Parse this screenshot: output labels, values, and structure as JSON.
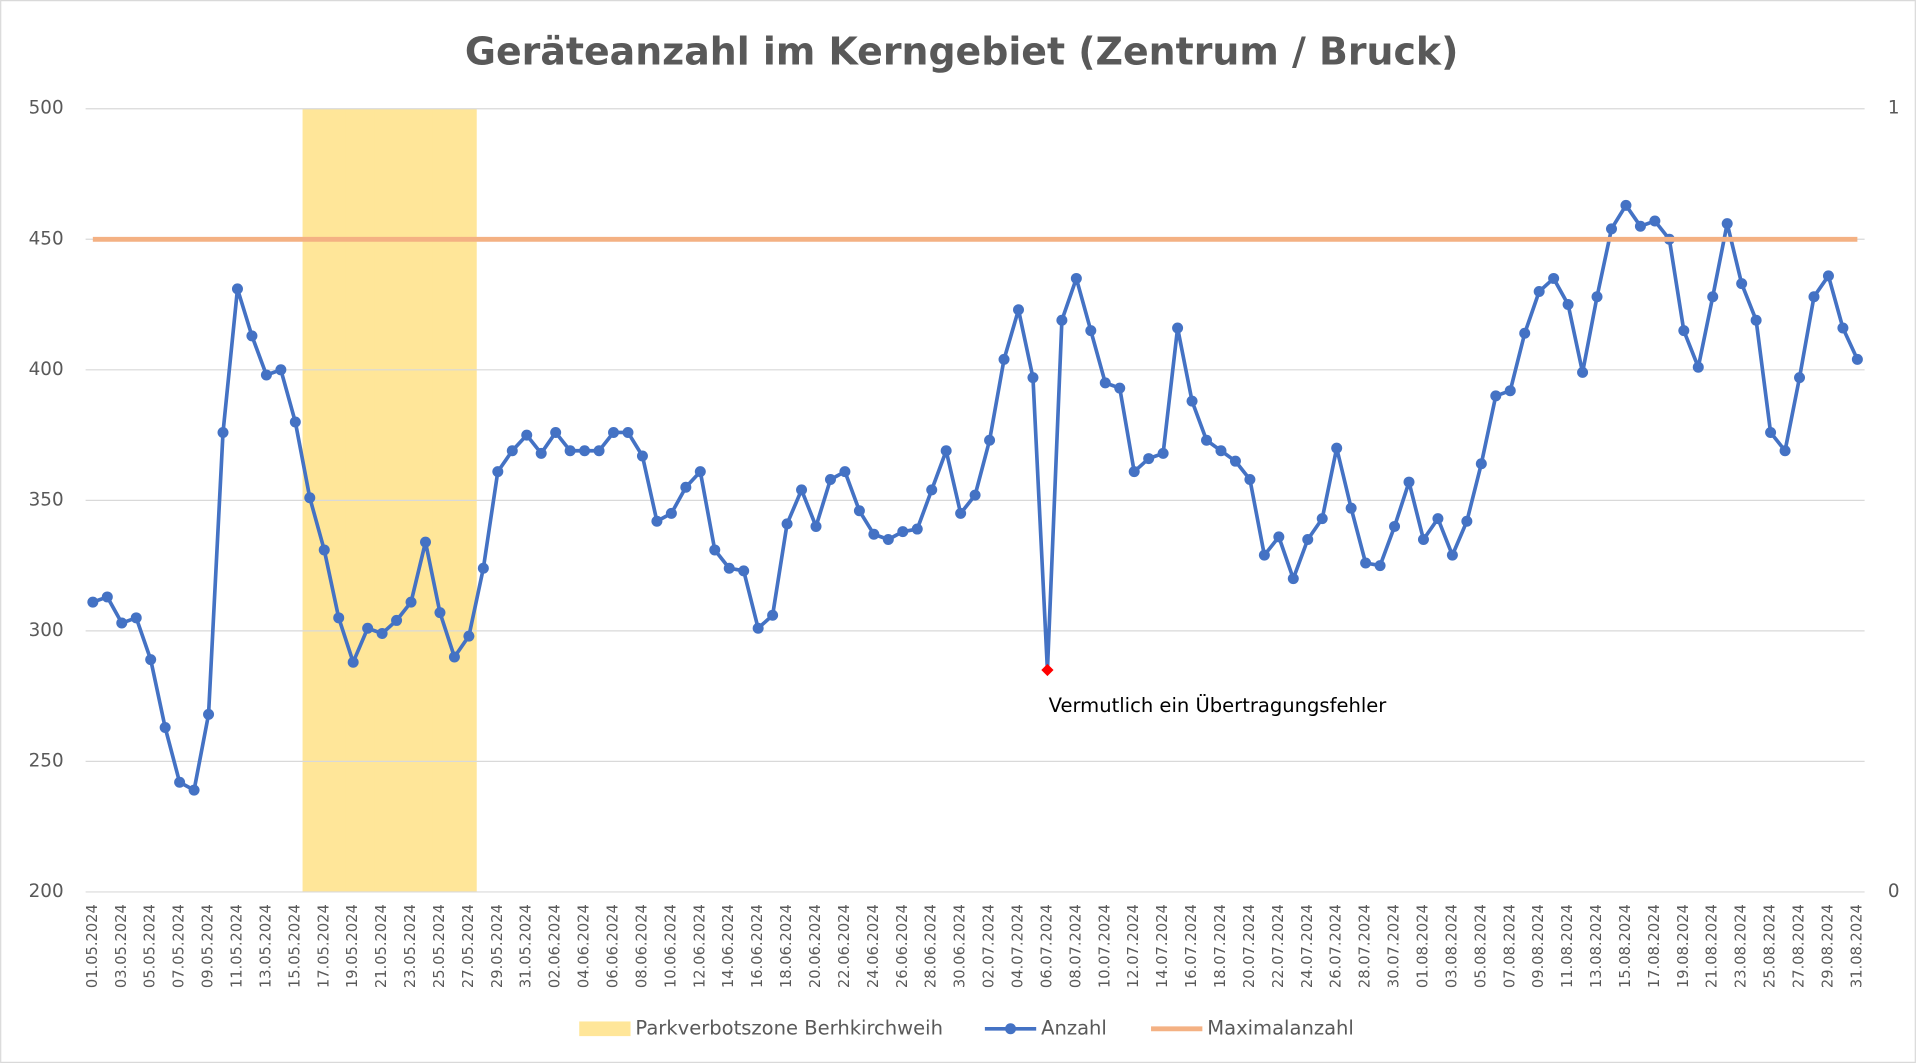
{
  "chart_data": {
    "type": "line",
    "title": "Geräteanzahl im Kerngebiet (Zentrum / Bruck)",
    "categories": [
      "01.05.2024",
      null,
      "03.05.2024",
      null,
      "05.05.2024",
      null,
      "07.05.2024",
      null,
      "09.05.2024",
      null,
      "11.05.2024",
      null,
      "13.05.2024",
      null,
      "15.05.2024",
      null,
      "17.05.2024",
      null,
      "19.05.2024",
      null,
      "21.05.2024",
      null,
      "23.05.2024",
      null,
      "25.05.2024",
      null,
      "27.05.2024",
      null,
      "29.05.2024",
      null,
      "31.05.2024",
      null,
      "02.06.2024",
      null,
      "04.06.2024",
      null,
      "06.06.2024",
      null,
      "08.06.2024",
      null,
      "10.06.2024",
      null,
      "12.06.2024",
      null,
      "14.06.2024",
      null,
      "16.06.2024",
      null,
      "18.06.2024",
      null,
      "20.06.2024",
      null,
      "22.06.2024",
      null,
      "24.06.2024",
      null,
      "26.06.2024",
      null,
      "28.06.2024",
      null,
      "30.06.2024",
      null,
      "02.07.2024",
      null,
      "04.07.2024",
      null,
      "06.07.2024",
      null,
      "08.07.2024",
      null,
      "10.07.2024",
      null,
      "12.07.2024",
      null,
      "14.07.2024",
      null,
      "16.07.2024",
      null,
      "18.07.2024",
      null,
      "20.07.2024",
      null,
      "22.07.2024",
      null,
      "24.07.2024",
      null,
      "26.07.2024",
      null,
      "28.07.2024",
      null,
      "30.07.2024",
      null,
      "01.08.2024",
      null,
      "03.08.2024",
      null,
      "05.08.2024",
      null,
      "07.08.2024",
      null,
      "09.08.2024",
      null,
      "11.08.2024",
      null,
      "13.08.2024",
      null,
      "15.08.2024",
      null,
      "17.08.2024",
      null,
      "19.08.2024",
      null,
      "21.08.2024",
      null,
      "23.08.2024",
      null,
      "25.08.2024",
      null,
      "27.08.2024",
      null,
      "29.08.2024",
      null,
      "31.08.2024"
    ],
    "series": [
      {
        "name": "Parkverbotszone Berhkirchweih",
        "type": "bar",
        "axis": "y2",
        "color": "#ffe699",
        "values": [
          null,
          null,
          null,
          null,
          null,
          null,
          null,
          null,
          null,
          null,
          null,
          null,
          null,
          null,
          null,
          1,
          1,
          1,
          1,
          1,
          1,
          1,
          1,
          1,
          1,
          1,
          1,
          null,
          null,
          null,
          null,
          null,
          null,
          null,
          null,
          null,
          null,
          null,
          null,
          null,
          null,
          null,
          null,
          null,
          null,
          null,
          null,
          null,
          null,
          null,
          null,
          null,
          null,
          null,
          null,
          null,
          null,
          null,
          null,
          null,
          null,
          null,
          null,
          null,
          null,
          null,
          null,
          null,
          null,
          null,
          null,
          null,
          null,
          null,
          null,
          null,
          null,
          null,
          null,
          null,
          null,
          null,
          null,
          null,
          null,
          null,
          null,
          null,
          null,
          null,
          null,
          null,
          null,
          null,
          null,
          null,
          null,
          null,
          null,
          null,
          null,
          null,
          null,
          null,
          null,
          null,
          null,
          null,
          null,
          null,
          null,
          null,
          null,
          null,
          null,
          null,
          null,
          null,
          null,
          null,
          null,
          null,
          null
        ]
      },
      {
        "name": "Anzahl",
        "type": "line",
        "markers": true,
        "color": "#4472c4",
        "values": [
          311,
          313,
          303,
          305,
          289,
          263,
          242,
          239,
          268,
          376,
          431,
          413,
          398,
          400,
          380,
          351,
          331,
          305,
          288,
          301,
          299,
          304,
          311,
          334,
          307,
          290,
          298,
          324,
          361,
          369,
          375,
          368,
          376,
          369,
          369,
          369,
          376,
          376,
          367,
          342,
          345,
          355,
          361,
          331,
          324,
          323,
          301,
          306,
          341,
          354,
          340,
          358,
          361,
          346,
          337,
          335,
          338,
          339,
          354,
          369,
          345,
          352,
          373,
          404,
          423,
          397,
          285,
          419,
          435,
          415,
          395,
          393,
          361,
          366,
          368,
          416,
          388,
          373,
          369,
          365,
          358,
          329,
          336,
          320,
          335,
          343,
          370,
          347,
          326,
          325,
          340,
          357,
          335,
          343,
          329,
          342,
          364,
          390,
          392,
          414,
          430,
          435,
          425,
          399,
          428,
          454,
          463,
          455,
          457,
          450,
          415,
          401,
          428,
          456,
          433,
          419,
          376,
          369,
          397,
          428,
          436,
          416,
          404
        ]
      },
      {
        "name": "Maximalanzahl",
        "type": "line",
        "markers": false,
        "color": "#f4b183",
        "values": [
          450,
          450,
          450,
          450,
          450,
          450,
          450,
          450,
          450,
          450,
          450,
          450,
          450,
          450,
          450,
          450,
          450,
          450,
          450,
          450,
          450,
          450,
          450,
          450,
          450,
          450,
          450,
          450,
          450,
          450,
          450,
          450,
          450,
          450,
          450,
          450,
          450,
          450,
          450,
          450,
          450,
          450,
          450,
          450,
          450,
          450,
          450,
          450,
          450,
          450,
          450,
          450,
          450,
          450,
          450,
          450,
          450,
          450,
          450,
          450,
          450,
          450,
          450,
          450,
          450,
          450,
          450,
          450,
          450,
          450,
          450,
          450,
          450,
          450,
          450,
          450,
          450,
          450,
          450,
          450,
          450,
          450,
          450,
          450,
          450,
          450,
          450,
          450,
          450,
          450,
          450,
          450,
          450,
          450,
          450,
          450,
          450,
          450,
          450,
          450,
          450,
          450,
          450,
          450,
          450,
          450,
          450,
          450,
          450,
          450,
          450,
          450,
          450,
          450,
          450,
          450,
          450,
          450,
          450,
          450,
          450,
          450,
          450
        ]
      }
    ],
    "ylim": [
      200,
      500
    ],
    "yticks": [
      200,
      250,
      300,
      350,
      400,
      450,
      500
    ],
    "y2lim": [
      0,
      1
    ],
    "y2ticks": [
      0,
      1
    ],
    "grid": true,
    "legend": "bottom",
    "annotations": [
      {
        "text": "Vermutlich ein Übertragungsfehler",
        "series": 1,
        "index": 66,
        "color": "#ff0000"
      }
    ]
  }
}
